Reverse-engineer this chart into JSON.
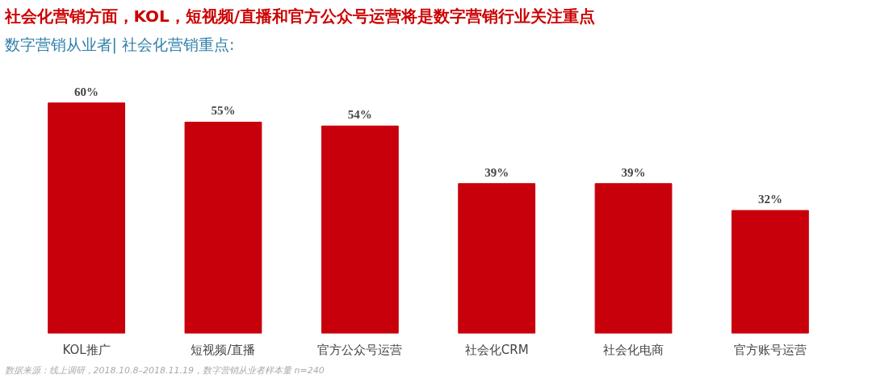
{
  "chart_data": {
    "type": "bar",
    "title": "社会化营销方面，KOL，短视频/直播和官方公众号运营将是数字营销行业关注重点",
    "subtitle": "数字营销从业者| 社会化营销重点:",
    "categories": [
      "KOL推广",
      "短视频/直播",
      "官方公众号运营",
      "社会化CRM",
      "社会化电商",
      "官方账号运营"
    ],
    "values": [
      60,
      55,
      54,
      39,
      39,
      32
    ],
    "color": "#c8000b",
    "value_labels": [
      "60%",
      "55%",
      "54%",
      "39%",
      "39%",
      "32%"
    ],
    "grid": false,
    "annotations": [
      "数据来源：线上调研，2018.10.8–2018.11.19，数字营销从业者样本量 n=240"
    ]
  }
}
